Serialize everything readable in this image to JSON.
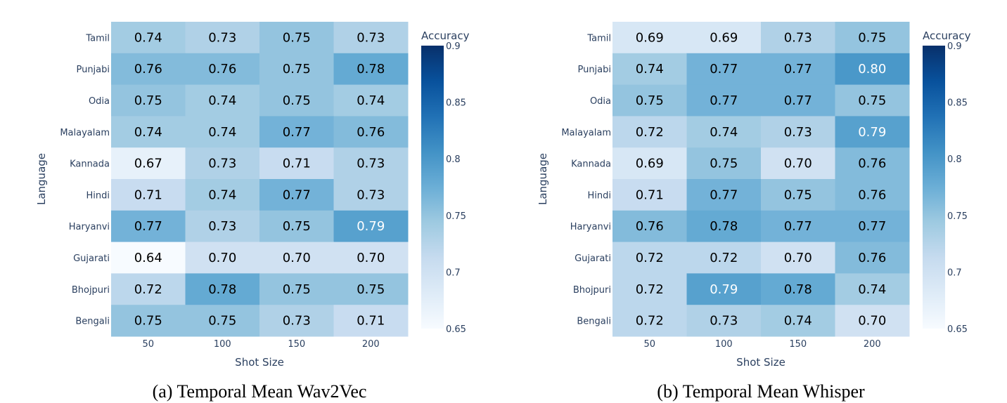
{
  "chart_data": [
    {
      "type": "heatmap",
      "caption": "(a) Temporal Mean Wav2Vec",
      "xlabel": "Shot Size",
      "ylabel": "Language",
      "x": [
        "50",
        "100",
        "150",
        "200"
      ],
      "y": [
        "Tamil",
        "Punjabi",
        "Odia",
        "Malayalam",
        "Kannada",
        "Hindi",
        "Haryanvi",
        "Gujarati",
        "Bhojpuri",
        "Bengali"
      ],
      "values": [
        [
          "0.74",
          "0.73",
          "0.75",
          "0.73"
        ],
        [
          "0.76",
          "0.76",
          "0.75",
          "0.78"
        ],
        [
          "0.75",
          "0.74",
          "0.75",
          "0.74"
        ],
        [
          "0.74",
          "0.74",
          "0.77",
          "0.76"
        ],
        [
          "0.67",
          "0.73",
          "0.71",
          "0.73"
        ],
        [
          "0.71",
          "0.74",
          "0.77",
          "0.73"
        ],
        [
          "0.77",
          "0.73",
          "0.75",
          "0.79"
        ],
        [
          "0.64",
          "0.70",
          "0.70",
          "0.70"
        ],
        [
          "0.72",
          "0.78",
          "0.75",
          "0.75"
        ],
        [
          "0.75",
          "0.75",
          "0.73",
          "0.71"
        ]
      ],
      "colorbar": {
        "title": "Accuracy",
        "range": [
          0.65,
          0.9
        ],
        "ticks": [
          "0.65",
          "0.7",
          "0.75",
          "0.8",
          "0.85",
          "0.9"
        ],
        "colorscale": "Blues"
      }
    },
    {
      "type": "heatmap",
      "caption": "(b) Temporal Mean Whisper",
      "xlabel": "Shot Size",
      "ylabel": "Language",
      "x": [
        "50",
        "100",
        "150",
        "200"
      ],
      "y": [
        "Tamil",
        "Punjabi",
        "Odia",
        "Malayalam",
        "Kannada",
        "Hindi",
        "Haryanvi",
        "Gujarati",
        "Bhojpuri",
        "Bengali"
      ],
      "values": [
        [
          "0.69",
          "0.69",
          "0.73",
          "0.75"
        ],
        [
          "0.74",
          "0.77",
          "0.77",
          "0.80"
        ],
        [
          "0.75",
          "0.77",
          "0.77",
          "0.75"
        ],
        [
          "0.72",
          "0.74",
          "0.73",
          "0.79"
        ],
        [
          "0.69",
          "0.75",
          "0.70",
          "0.76"
        ],
        [
          "0.71",
          "0.77",
          "0.75",
          "0.76"
        ],
        [
          "0.76",
          "0.78",
          "0.77",
          "0.77"
        ],
        [
          "0.72",
          "0.72",
          "0.70",
          "0.76"
        ],
        [
          "0.72",
          "0.79",
          "0.78",
          "0.74"
        ],
        [
          "0.72",
          "0.73",
          "0.74",
          "0.70"
        ]
      ],
      "colorbar": {
        "title": "Accuracy",
        "range": [
          0.65,
          0.9
        ],
        "ticks": [
          "0.65",
          "0.7",
          "0.75",
          "0.8",
          "0.85",
          "0.9"
        ],
        "colorscale": "Blues"
      }
    }
  ]
}
